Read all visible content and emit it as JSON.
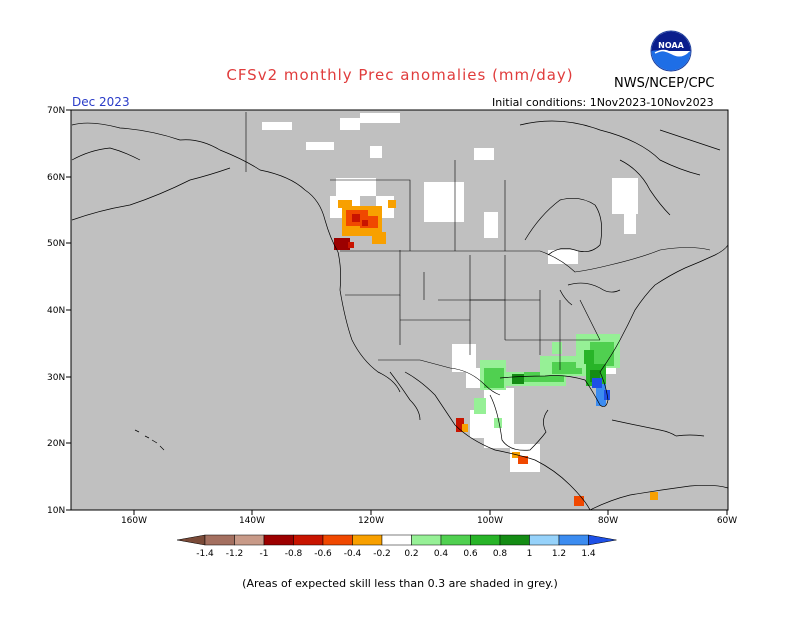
{
  "header": {
    "title": "CFSv2 monthly Prec anomalies (mm/day)",
    "agency": "NWS/NCEP/CPC",
    "month": "Dec 2023",
    "initial_conditions": "Initial conditions: 1Nov2023-10Nov2023",
    "logo_text": "NOAA"
  },
  "map": {
    "lat_labels": [
      "70N",
      "60N",
      "50N",
      "40N",
      "30N",
      "20N",
      "10N"
    ],
    "lon_labels": [
      "160W",
      "140W",
      "120W",
      "100W",
      "80W",
      "60W"
    ],
    "background_color": "#c0c0c0",
    "land_no_anomaly_color": "#ffffff"
  },
  "colorbar": {
    "labels": [
      "-1.4",
      "-1.2",
      "-1",
      "-0.8",
      "-0.6",
      "-0.4",
      "-0.2",
      "0.2",
      "0.4",
      "0.6",
      "0.8",
      "1",
      "1.2",
      "1.4"
    ],
    "colors": [
      "#7a4a38",
      "#a47060",
      "#c89a88",
      "#9c0000",
      "#c81400",
      "#f04800",
      "#f8a000",
      "#ffffff",
      "#96f096",
      "#50d050",
      "#28b428",
      "#148c14",
      "#96d2fa",
      "#3c8cf0",
      "#1e50e6"
    ]
  },
  "footnote": "(Areas of expected skill less than 0.3 are shaded in grey.)"
}
